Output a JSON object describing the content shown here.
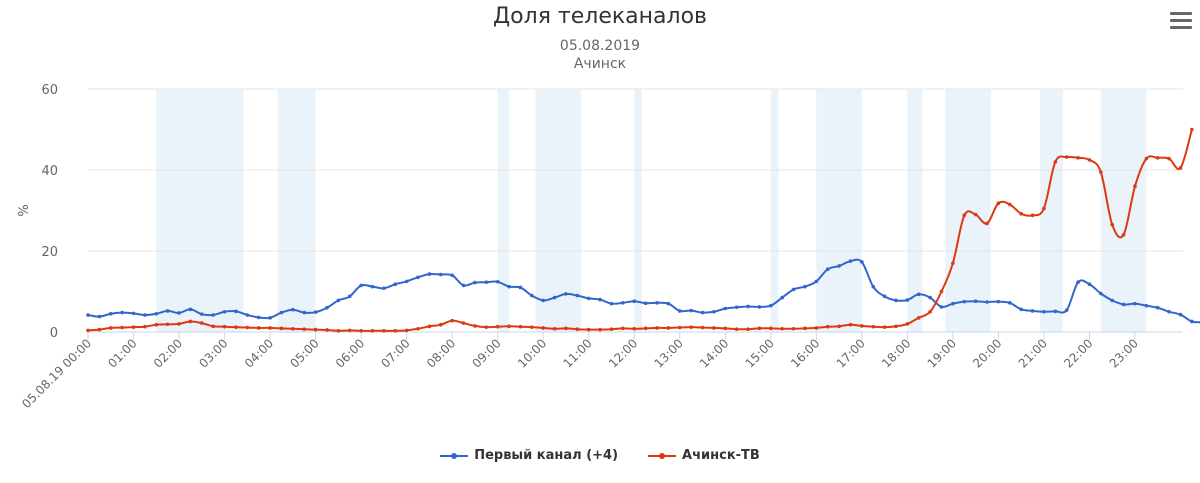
{
  "title": "Доля телеканалов",
  "subtitle_date": "05.08.2019",
  "subtitle_city": "Ачинск",
  "menu_icon": "hamburger-menu-icon",
  "chart_data": {
    "type": "line",
    "title": "Доля телеканалов",
    "subtitle": [
      "05.08.2019",
      "Ачинск"
    ],
    "ylabel": "%",
    "xlabel": "",
    "ylim": [
      0,
      60
    ],
    "yticks": [
      0,
      20,
      40,
      60
    ],
    "xlim": [
      0,
      1425
    ],
    "x_unit": "minutes since 05.08.19 00:00",
    "x_tick_labels": [
      "05.08.19 00:00",
      "01:00",
      "02:00",
      "03:00",
      "04:00",
      "05:00",
      "06:00",
      "07:00",
      "08:00",
      "09:00",
      "10:00",
      "11:00",
      "12:00",
      "13:00",
      "14:00",
      "15:00",
      "16:00",
      "17:00",
      "18:00",
      "19:00",
      "20:00",
      "21:00",
      "22:00",
      "23:00"
    ],
    "grid": true,
    "legend": "bottom-center",
    "highlight_bands_minutes": [
      [
        90,
        205
      ],
      [
        250,
        300
      ],
      [
        540,
        555
      ],
      [
        590,
        650
      ],
      [
        720,
        730
      ],
      [
        900,
        910
      ],
      [
        960,
        1020
      ],
      [
        1080,
        1100
      ],
      [
        1130,
        1190
      ],
      [
        1255,
        1285
      ],
      [
        1335,
        1395
      ]
    ],
    "series": [
      {
        "name": "Первый канал (+4)",
        "color": "#3366cc",
        "points": [
          [
            0,
            4.2
          ],
          [
            15,
            3.8
          ],
          [
            30,
            4.5
          ],
          [
            45,
            4.8
          ],
          [
            60,
            4.6
          ],
          [
            75,
            4.2
          ],
          [
            90,
            4.5
          ],
          [
            105,
            5.2
          ],
          [
            120,
            4.7
          ],
          [
            135,
            5.6
          ],
          [
            150,
            4.4
          ],
          [
            165,
            4.2
          ],
          [
            180,
            5.0
          ],
          [
            195,
            5.1
          ],
          [
            210,
            4.2
          ],
          [
            225,
            3.6
          ],
          [
            240,
            3.5
          ],
          [
            255,
            4.8
          ],
          [
            270,
            5.5
          ],
          [
            285,
            4.8
          ],
          [
            300,
            4.9
          ],
          [
            315,
            6.0
          ],
          [
            330,
            7.8
          ],
          [
            345,
            8.8
          ],
          [
            360,
            11.5
          ],
          [
            375,
            11.2
          ],
          [
            390,
            10.8
          ],
          [
            405,
            11.8
          ],
          [
            420,
            12.5
          ],
          [
            435,
            13.5
          ],
          [
            450,
            14.3
          ],
          [
            465,
            14.2
          ],
          [
            480,
            14.0
          ],
          [
            495,
            11.5
          ],
          [
            510,
            12.2
          ],
          [
            525,
            12.3
          ],
          [
            540,
            12.4
          ],
          [
            555,
            11.2
          ],
          [
            570,
            11.0
          ],
          [
            585,
            9.0
          ],
          [
            600,
            7.8
          ],
          [
            615,
            8.5
          ],
          [
            630,
            9.4
          ],
          [
            645,
            9.0
          ],
          [
            660,
            8.3
          ],
          [
            675,
            8.0
          ],
          [
            690,
            7.0
          ],
          [
            705,
            7.2
          ],
          [
            720,
            7.6
          ],
          [
            735,
            7.1
          ],
          [
            750,
            7.2
          ],
          [
            765,
            7.0
          ],
          [
            780,
            5.2
          ],
          [
            795,
            5.3
          ],
          [
            810,
            4.8
          ],
          [
            825,
            5.0
          ],
          [
            840,
            5.8
          ],
          [
            855,
            6.1
          ],
          [
            870,
            6.3
          ],
          [
            885,
            6.2
          ],
          [
            900,
            6.5
          ],
          [
            915,
            8.5
          ],
          [
            930,
            10.5
          ],
          [
            945,
            11.2
          ],
          [
            960,
            12.5
          ],
          [
            975,
            15.5
          ],
          [
            990,
            16.3
          ],
          [
            1005,
            17.5
          ],
          [
            1020,
            17.3
          ],
          [
            1035,
            11.2
          ],
          [
            1050,
            8.8
          ],
          [
            1065,
            7.8
          ],
          [
            1080,
            7.9
          ],
          [
            1095,
            9.3
          ],
          [
            1110,
            8.5
          ],
          [
            1125,
            6.2
          ],
          [
            1140,
            7.0
          ],
          [
            1155,
            7.5
          ],
          [
            1170,
            7.6
          ],
          [
            1185,
            7.4
          ],
          [
            1200,
            7.5
          ],
          [
            1215,
            7.2
          ],
          [
            1230,
            5.6
          ],
          [
            1245,
            5.2
          ],
          [
            1260,
            5.0
          ],
          [
            1275,
            5.1
          ],
          [
            1290,
            5.4
          ],
          [
            1305,
            12.3
          ],
          [
            1320,
            11.8
          ],
          [
            1335,
            9.5
          ],
          [
            1350,
            7.8
          ],
          [
            1365,
            6.8
          ],
          [
            1380,
            7.0
          ],
          [
            1395,
            6.5
          ],
          [
            1410,
            6.0
          ],
          [
            1425,
            5.0
          ],
          [
            1440,
            4.3
          ],
          [
            1455,
            2.6
          ],
          [
            1470,
            2.4
          ]
        ]
      },
      {
        "name": "Ачинск-ТВ",
        "color": "#dc3912",
        "points": [
          [
            0,
            0.4
          ],
          [
            15,
            0.6
          ],
          [
            30,
            1.0
          ],
          [
            45,
            1.1
          ],
          [
            60,
            1.2
          ],
          [
            75,
            1.3
          ],
          [
            90,
            1.8
          ],
          [
            105,
            1.9
          ],
          [
            120,
            2.0
          ],
          [
            135,
            2.6
          ],
          [
            150,
            2.2
          ],
          [
            165,
            1.4
          ],
          [
            180,
            1.3
          ],
          [
            195,
            1.2
          ],
          [
            210,
            1.1
          ],
          [
            225,
            1.0
          ],
          [
            240,
            1.0
          ],
          [
            255,
            0.9
          ],
          [
            270,
            0.8
          ],
          [
            285,
            0.7
          ],
          [
            300,
            0.6
          ],
          [
            315,
            0.5
          ],
          [
            330,
            0.3
          ],
          [
            345,
            0.4
          ],
          [
            360,
            0.3
          ],
          [
            375,
            0.3
          ],
          [
            390,
            0.3
          ],
          [
            405,
            0.3
          ],
          [
            420,
            0.4
          ],
          [
            435,
            0.8
          ],
          [
            450,
            1.4
          ],
          [
            465,
            1.8
          ],
          [
            480,
            2.8
          ],
          [
            495,
            2.2
          ],
          [
            510,
            1.5
          ],
          [
            525,
            1.2
          ],
          [
            540,
            1.3
          ],
          [
            555,
            1.4
          ],
          [
            570,
            1.3
          ],
          [
            585,
            1.2
          ],
          [
            600,
            1.0
          ],
          [
            615,
            0.8
          ],
          [
            630,
            0.9
          ],
          [
            645,
            0.7
          ],
          [
            660,
            0.6
          ],
          [
            675,
            0.6
          ],
          [
            690,
            0.7
          ],
          [
            705,
            0.9
          ],
          [
            720,
            0.8
          ],
          [
            735,
            0.9
          ],
          [
            750,
            1.0
          ],
          [
            765,
            1.0
          ],
          [
            780,
            1.1
          ],
          [
            795,
            1.2
          ],
          [
            810,
            1.1
          ],
          [
            825,
            1.0
          ],
          [
            840,
            0.9
          ],
          [
            855,
            0.7
          ],
          [
            870,
            0.7
          ],
          [
            885,
            0.9
          ],
          [
            900,
            0.9
          ],
          [
            915,
            0.8
          ],
          [
            930,
            0.8
          ],
          [
            945,
            0.9
          ],
          [
            960,
            1.0
          ],
          [
            975,
            1.3
          ],
          [
            990,
            1.4
          ],
          [
            1005,
            1.8
          ],
          [
            1020,
            1.5
          ],
          [
            1035,
            1.3
          ],
          [
            1050,
            1.2
          ],
          [
            1065,
            1.4
          ],
          [
            1080,
            2.0
          ],
          [
            1095,
            3.5
          ],
          [
            1110,
            5.0
          ],
          [
            1125,
            10.0
          ],
          [
            1140,
            17.0
          ],
          [
            1155,
            28.8
          ],
          [
            1170,
            29.0
          ],
          [
            1185,
            26.8
          ],
          [
            1200,
            31.8
          ],
          [
            1215,
            31.5
          ],
          [
            1230,
            29.2
          ],
          [
            1245,
            28.8
          ],
          [
            1260,
            30.5
          ],
          [
            1275,
            42.0
          ],
          [
            1290,
            43.2
          ],
          [
            1305,
            43.0
          ],
          [
            1320,
            42.5
          ],
          [
            1335,
            39.5
          ],
          [
            1350,
            26.5
          ],
          [
            1365,
            24.0
          ],
          [
            1380,
            36.0
          ],
          [
            1395,
            42.8
          ],
          [
            1410,
            43.0
          ],
          [
            1425,
            42.8
          ],
          [
            1440,
            40.5
          ],
          [
            1455,
            50.0
          ]
        ]
      }
    ]
  }
}
